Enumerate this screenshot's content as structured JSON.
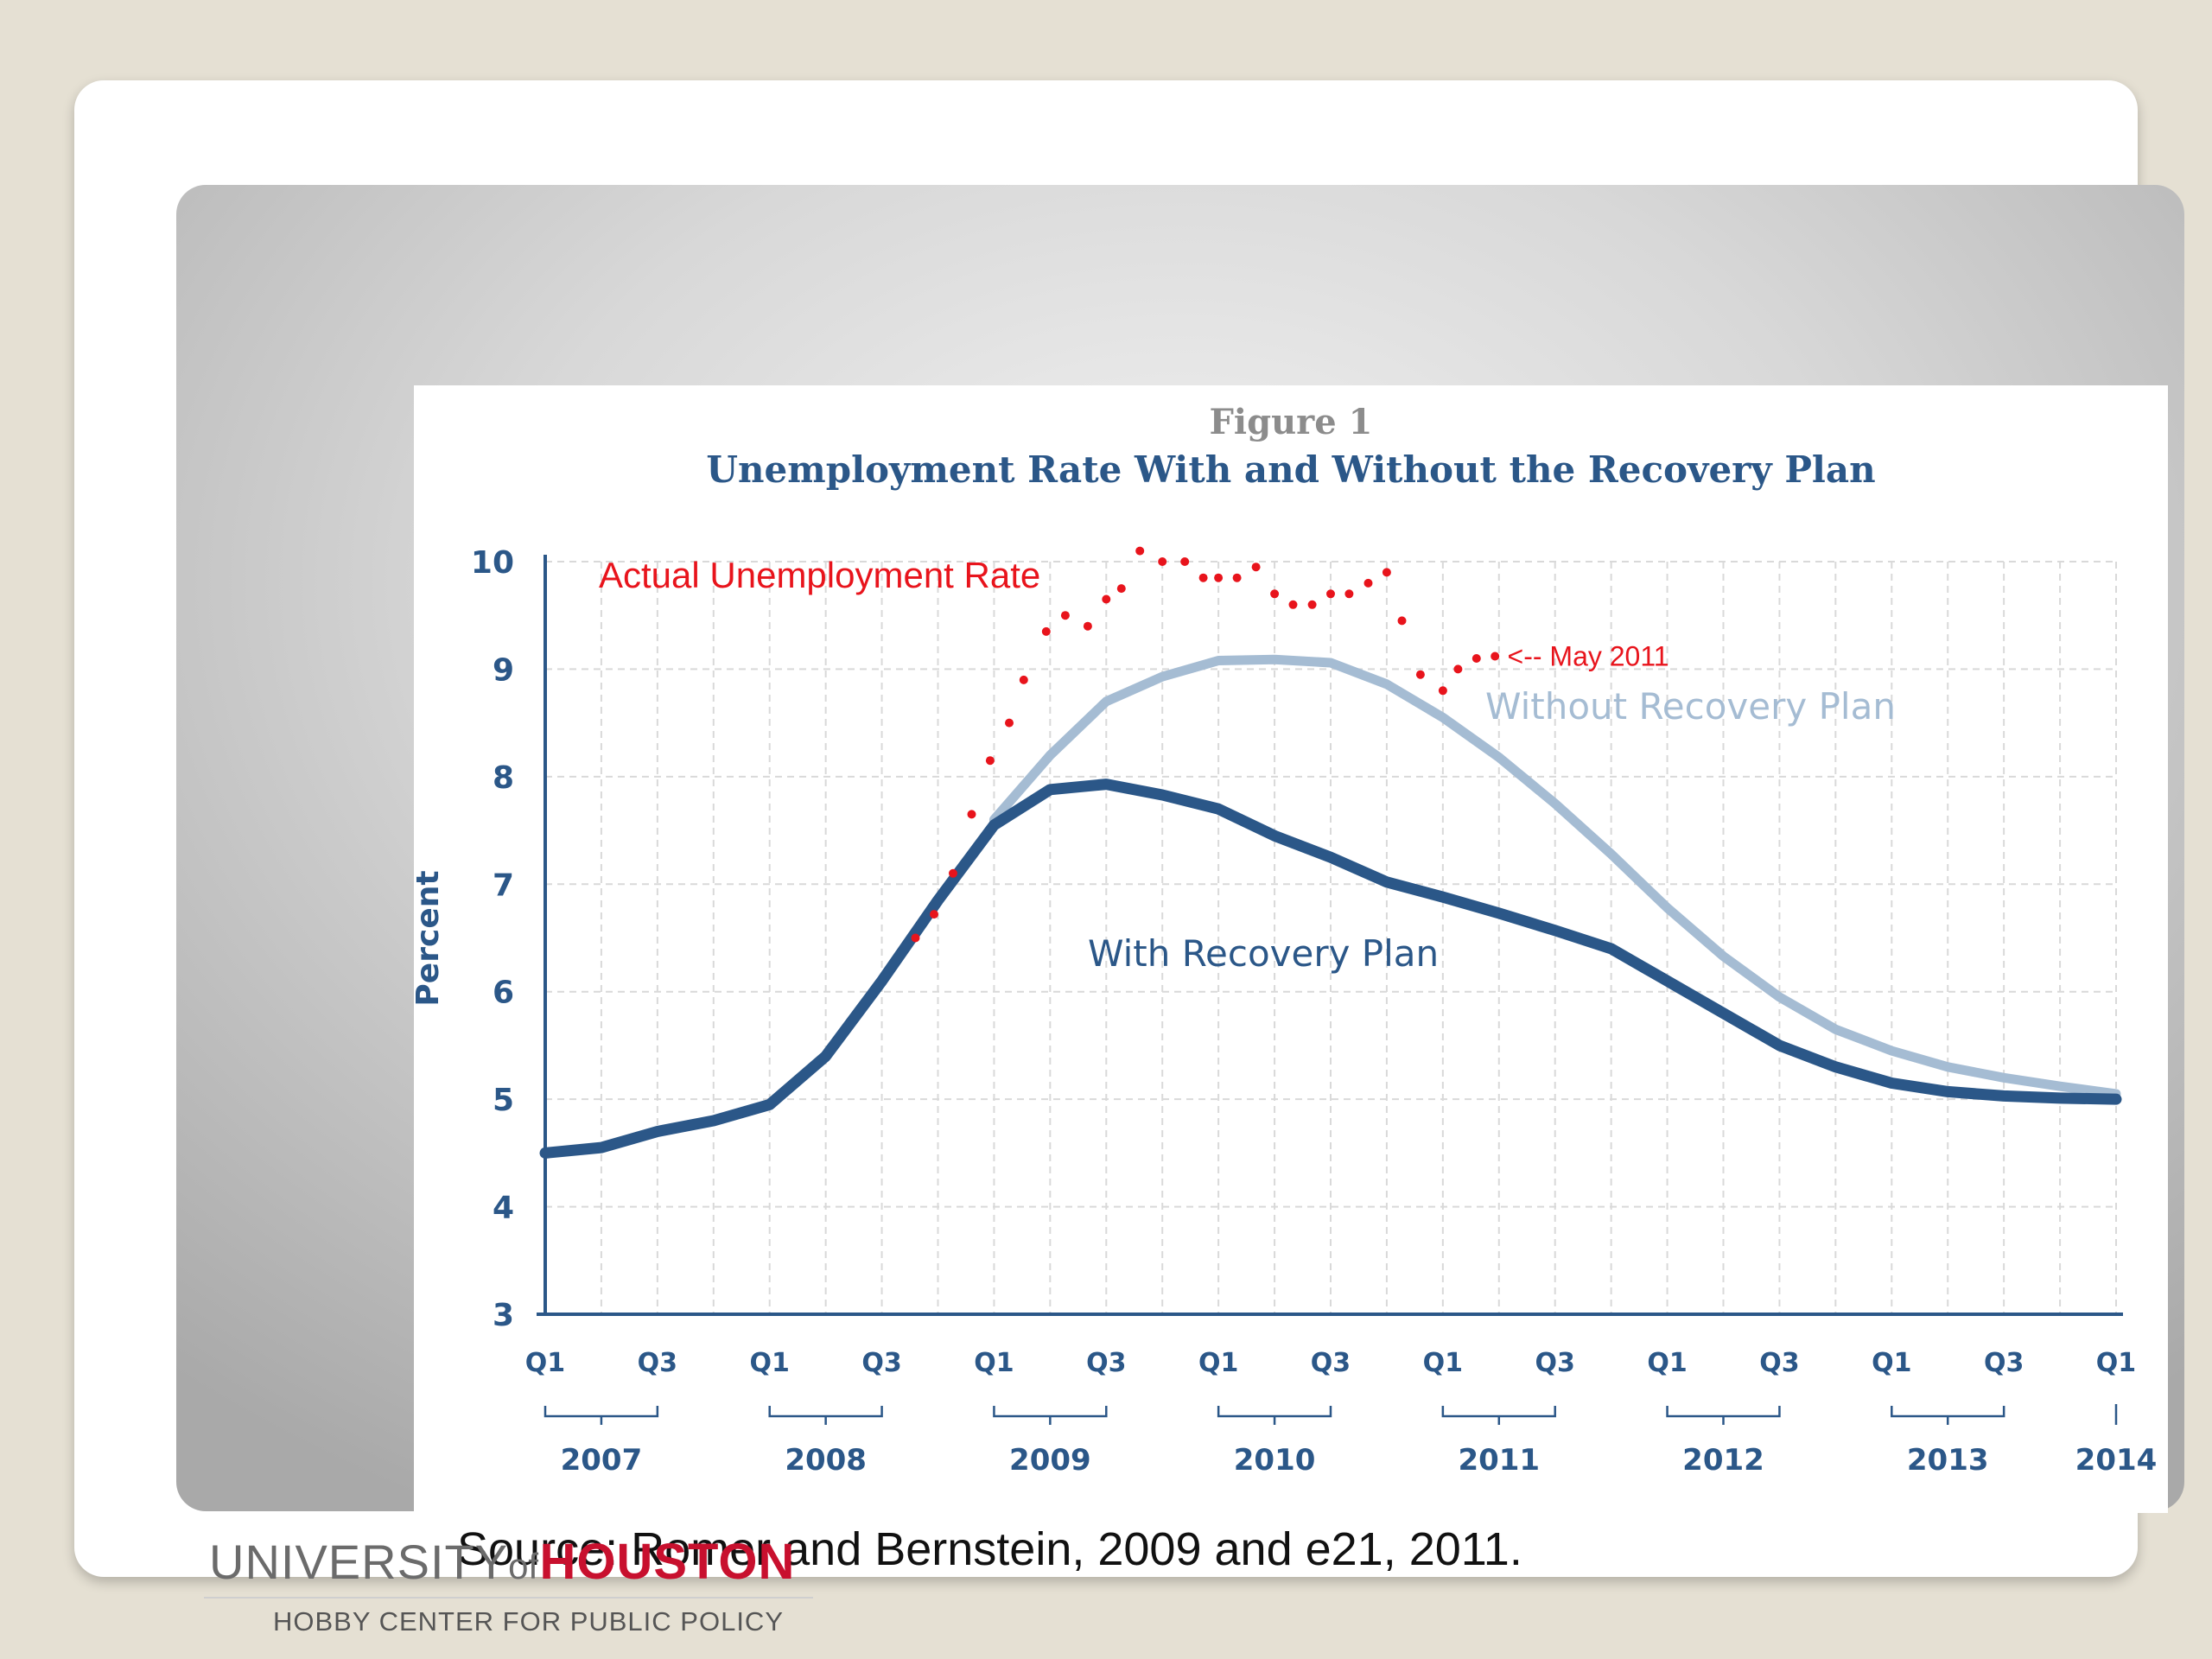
{
  "source_note": "Source: Romer and Bernstein, 2009 and e21, 2011.",
  "logo": {
    "university": "UNIVERSITY",
    "of": "of",
    "houston": "HOUSTON",
    "subtitle": "HOBBY CENTER FOR PUBLIC POLICY"
  },
  "colors": {
    "with_plan": "#2b5788",
    "without_plan": "#a5bcd3",
    "actual": "#e8141c",
    "axis_text": "#2b5788",
    "figure_label": "#8c8c8c",
    "grid": "#d9d9d9"
  },
  "chart_data": {
    "type": "line",
    "figure_label": "Figure 1",
    "title": "Unemployment Rate With and Without the Recovery Plan",
    "ylabel": "Percent",
    "xlabel": "",
    "ylim": [
      3,
      10
    ],
    "yticks": [
      3,
      4,
      5,
      6,
      7,
      8,
      9,
      10
    ],
    "xlim": [
      0,
      28
    ],
    "quarter_ticks": [
      {
        "q": 0,
        "label": "Q1"
      },
      {
        "q": 2,
        "label": "Q3"
      },
      {
        "q": 4,
        "label": "Q1"
      },
      {
        "q": 6,
        "label": "Q3"
      },
      {
        "q": 8,
        "label": "Q1"
      },
      {
        "q": 10,
        "label": "Q3"
      },
      {
        "q": 12,
        "label": "Q1"
      },
      {
        "q": 14,
        "label": "Q3"
      },
      {
        "q": 16,
        "label": "Q1"
      },
      {
        "q": 18,
        "label": "Q3"
      },
      {
        "q": 20,
        "label": "Q1"
      },
      {
        "q": 22,
        "label": "Q3"
      },
      {
        "q": 24,
        "label": "Q1"
      },
      {
        "q": 26,
        "label": "Q3"
      },
      {
        "q": 28,
        "label": "Q1"
      }
    ],
    "years": [
      {
        "label": "2007",
        "start": 0,
        "end": 2
      },
      {
        "label": "2008",
        "start": 4,
        "end": 6
      },
      {
        "label": "2009",
        "start": 8,
        "end": 10
      },
      {
        "label": "2010",
        "start": 12,
        "end": 14
      },
      {
        "label": "2011",
        "start": 16,
        "end": 18
      },
      {
        "label": "2012",
        "start": 20,
        "end": 22
      },
      {
        "label": "2013",
        "start": 24,
        "end": 26
      },
      {
        "label": "2014",
        "start": 28,
        "end": 28
      }
    ],
    "series": [
      {
        "name": "With Recovery Plan",
        "label": "With Recovery Plan",
        "style": "line",
        "x": [
          0,
          1,
          2,
          3,
          4,
          5,
          6,
          7,
          8,
          9,
          10,
          11,
          12,
          13,
          14,
          15,
          16,
          17,
          18,
          19,
          20,
          21,
          22,
          23,
          24,
          25,
          26,
          27,
          28
        ],
        "values": [
          4.5,
          4.55,
          4.7,
          4.8,
          4.95,
          5.4,
          6.1,
          6.85,
          7.55,
          7.88,
          7.93,
          7.83,
          7.7,
          7.45,
          7.25,
          7.02,
          6.88,
          6.73,
          6.57,
          6.4,
          6.1,
          5.8,
          5.5,
          5.3,
          5.15,
          5.07,
          5.03,
          5.01,
          5.0
        ]
      },
      {
        "name": "Without Recovery Plan",
        "label": "Without Recovery Plan",
        "style": "line",
        "x": [
          8,
          9,
          10,
          11,
          12,
          13,
          14,
          15,
          16,
          17,
          18,
          19,
          20,
          21,
          22,
          23,
          24,
          25,
          26,
          27,
          28
        ],
        "values": [
          7.6,
          8.2,
          8.7,
          8.93,
          9.08,
          9.09,
          9.06,
          8.86,
          8.55,
          8.18,
          7.75,
          7.28,
          6.78,
          6.33,
          5.95,
          5.65,
          5.45,
          5.3,
          5.2,
          5.12,
          5.05
        ]
      },
      {
        "name": "Actual Unemployment Rate",
        "label": "Actual Unemployment Rate",
        "style": "dots",
        "x": [
          6.6,
          6.93,
          7.27,
          7.6,
          7.93,
          8.27,
          8.53,
          8.93,
          9.27,
          9.67,
          10.0,
          10.27,
          10.6,
          11.0,
          11.4,
          11.73,
          12.0,
          12.33,
          12.67,
          13.0,
          13.33,
          13.67,
          14.0,
          14.33,
          14.67,
          15.0,
          15.27,
          15.6,
          16.0,
          16.27,
          16.6,
          16.93
        ],
        "values": [
          6.5,
          6.72,
          7.1,
          7.65,
          8.15,
          8.5,
          8.9,
          9.35,
          9.5,
          9.4,
          9.65,
          9.75,
          10.1,
          10.0,
          10.0,
          9.85,
          9.85,
          9.85,
          9.95,
          9.7,
          9.6,
          9.6,
          9.7,
          9.7,
          9.8,
          9.9,
          9.45,
          8.95,
          8.8,
          9.0,
          9.1,
          9.12
        ]
      }
    ],
    "annotations": [
      {
        "text": "<-- May 2011",
        "x": 17.15,
        "y": 9.12
      }
    ]
  }
}
